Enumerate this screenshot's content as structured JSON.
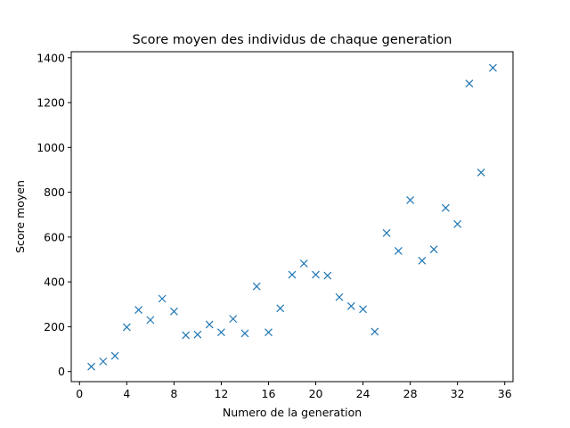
{
  "chart_data": {
    "type": "scatter",
    "title": "Score moyen des individus de chaque generation",
    "xlabel": "Numero de la generation",
    "ylabel": "Score moyen",
    "xlim": [
      -0.7,
      36.7
    ],
    "ylim": [
      -45,
      1427
    ],
    "xticks": [
      0,
      4,
      8,
      12,
      16,
      20,
      24,
      28,
      32,
      36
    ],
    "yticks": [
      0,
      200,
      400,
      600,
      800,
      1000,
      1200,
      1400
    ],
    "marker": "x",
    "color": "#1f77b4",
    "grid": false,
    "series": [
      {
        "x": [
          1,
          2,
          3,
          4,
          5,
          6,
          7,
          8,
          9,
          10,
          11,
          12,
          13,
          14,
          15,
          16,
          17,
          18,
          19,
          20,
          21,
          22,
          23,
          24,
          25,
          26,
          27,
          28,
          29,
          30,
          31,
          32,
          33,
          34,
          35
        ],
        "y": [
          22,
          45,
          70,
          198,
          275,
          230,
          325,
          268,
          162,
          165,
          210,
          175,
          235,
          170,
          380,
          175,
          282,
          432,
          482,
          432,
          428,
          332,
          292,
          278,
          178,
          618,
          538,
          765,
          495,
          545,
          730,
          658,
          1285,
          888,
          1355
        ]
      }
    ]
  }
}
